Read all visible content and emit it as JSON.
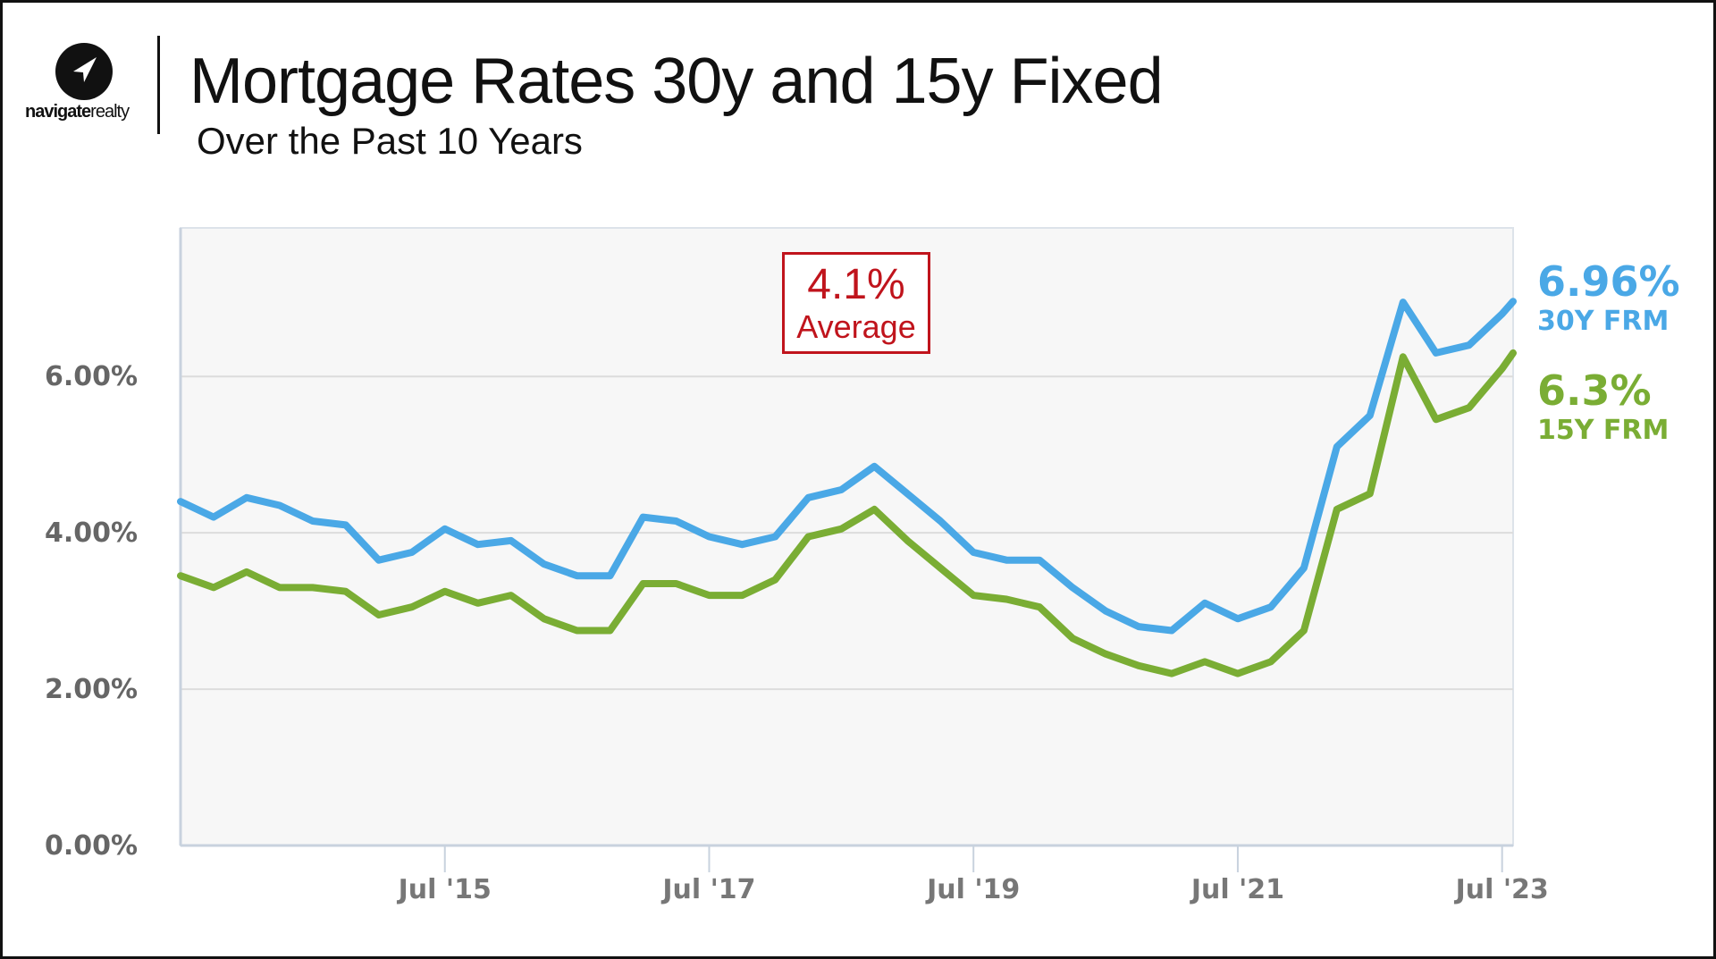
{
  "header": {
    "title": "Mortgage Rates 30y and 15y Fixed",
    "subtitle": "Over the Past 10 Years",
    "logo_text_bold": "navigate",
    "logo_text_light": "realty"
  },
  "callout": {
    "value": "4.1%",
    "label": "Average"
  },
  "end_labels": [
    {
      "value": "6.96%",
      "name": "30Y FRM",
      "color": "#4aa8e6"
    },
    {
      "value": "6.3%",
      "name": "15Y FRM",
      "color": "#7aad34"
    }
  ],
  "colors": {
    "series_30y": "#4aa8e6",
    "series_15y": "#7aad34",
    "callout": "#c0141c",
    "plot_bg": "#f7f7f7"
  },
  "chart_data": {
    "type": "line",
    "title": "Mortgage Rates 30y and 15y Fixed",
    "subtitle": "Over the Past 10 Years",
    "xlabel": "",
    "ylabel": "",
    "y_ticks": [
      "0.00%",
      "2.00%",
      "4.00%",
      "6.00%"
    ],
    "y_tick_values": [
      0,
      2,
      4,
      6
    ],
    "ylim": [
      0,
      7.9
    ],
    "x_ticks": [
      "Jul '15",
      "Jul '17",
      "Jul '19",
      "Jul '21",
      "Jul '23"
    ],
    "x_tick_values": [
      "2015-07",
      "2017-07",
      "2019-07",
      "2021-07",
      "2023-07"
    ],
    "xlim": [
      "2013-07",
      "2023-08"
    ],
    "grid": true,
    "legend": "right end labels",
    "annotations": [
      "4.1% Average"
    ],
    "x": [
      "2013-07",
      "2013-10",
      "2014-01",
      "2014-04",
      "2014-07",
      "2014-10",
      "2015-01",
      "2015-04",
      "2015-07",
      "2015-10",
      "2016-01",
      "2016-04",
      "2016-07",
      "2016-10",
      "2017-01",
      "2017-04",
      "2017-07",
      "2017-10",
      "2018-01",
      "2018-04",
      "2018-07",
      "2018-10",
      "2019-01",
      "2019-04",
      "2019-07",
      "2019-10",
      "2020-01",
      "2020-04",
      "2020-07",
      "2020-10",
      "2021-01",
      "2021-04",
      "2021-07",
      "2021-10",
      "2022-01",
      "2022-04",
      "2022-07",
      "2022-10",
      "2023-01",
      "2023-04",
      "2023-07",
      "2023-08"
    ],
    "series": [
      {
        "name": "30Y FRM",
        "color": "#4aa8e6",
        "values": [
          4.4,
          4.2,
          4.45,
          4.35,
          4.15,
          4.1,
          3.65,
          3.75,
          4.05,
          3.85,
          3.9,
          3.6,
          3.45,
          3.45,
          4.2,
          4.15,
          3.95,
          3.85,
          3.95,
          4.45,
          4.55,
          4.85,
          4.5,
          4.15,
          3.75,
          3.65,
          3.65,
          3.3,
          3.0,
          2.8,
          2.75,
          3.1,
          2.9,
          3.05,
          3.55,
          5.1,
          5.5,
          6.95,
          6.3,
          6.4,
          6.8,
          6.96
        ]
      },
      {
        "name": "15Y FRM",
        "color": "#7aad34",
        "values": [
          3.45,
          3.3,
          3.5,
          3.3,
          3.3,
          3.25,
          2.95,
          3.05,
          3.25,
          3.1,
          3.2,
          2.9,
          2.75,
          2.75,
          3.35,
          3.35,
          3.2,
          3.2,
          3.4,
          3.95,
          4.05,
          4.3,
          3.9,
          3.55,
          3.2,
          3.15,
          3.05,
          2.65,
          2.45,
          2.3,
          2.2,
          2.35,
          2.2,
          2.35,
          2.75,
          4.3,
          4.5,
          6.25,
          5.45,
          5.6,
          6.1,
          6.3
        ]
      }
    ]
  }
}
